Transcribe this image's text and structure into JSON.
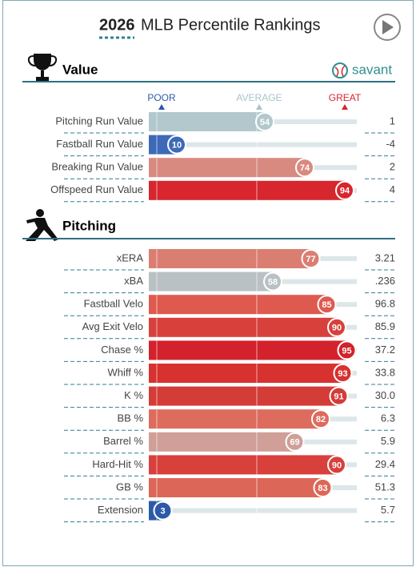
{
  "header": {
    "year": "2026",
    "title": "MLB Percentile Rankings"
  },
  "brand": "savant",
  "scale": {
    "poor": "POOR",
    "average": "AVERAGE",
    "great": "GREAT"
  },
  "sections": [
    {
      "title": "Value",
      "rows": [
        {
          "label": "Pitching Run Value",
          "percentile": 54,
          "stat": "1",
          "color": "#b2c8cd"
        },
        {
          "label": "Fastball Run Value",
          "percentile": 10,
          "stat": "-4",
          "color": "#3d6ab8"
        },
        {
          "label": "Breaking Run Value",
          "percentile": 74,
          "stat": "2",
          "color": "#d98a80"
        },
        {
          "label": "Offspeed Run Value",
          "percentile": 94,
          "stat": "4",
          "color": "#d7262e"
        }
      ]
    },
    {
      "title": "Pitching",
      "rows": [
        {
          "label": "xERA",
          "percentile": 77,
          "stat": "3.21",
          "color": "#db7e72"
        },
        {
          "label": "xBA",
          "percentile": 58,
          "stat": ".236",
          "color": "#b9c1c4"
        },
        {
          "label": "Fastball Velo",
          "percentile": 85,
          "stat": "96.8",
          "color": "#de5a4e"
        },
        {
          "label": "Avg Exit Velo",
          "percentile": 90,
          "stat": "85.9",
          "color": "#d8403c"
        },
        {
          "label": "Chase %",
          "percentile": 95,
          "stat": "37.2",
          "color": "#d3222b"
        },
        {
          "label": "Whiff %",
          "percentile": 93,
          "stat": "33.8",
          "color": "#d73130"
        },
        {
          "label": "K %",
          "percentile": 91,
          "stat": "30.0",
          "color": "#d43c38"
        },
        {
          "label": "BB %",
          "percentile": 82,
          "stat": "6.3",
          "color": "#dd6c5e"
        },
        {
          "label": "Barrel %",
          "percentile": 69,
          "stat": "5.9",
          "color": "#cf9f98"
        },
        {
          "label": "Hard-Hit %",
          "percentile": 90,
          "stat": "29.4",
          "color": "#d8403c"
        },
        {
          "label": "GB %",
          "percentile": 83,
          "stat": "51.3",
          "color": "#dc6758"
        },
        {
          "label": "Extension",
          "percentile": 3,
          "stat": "5.7",
          "color": "#2c5aa8"
        }
      ]
    }
  ]
}
